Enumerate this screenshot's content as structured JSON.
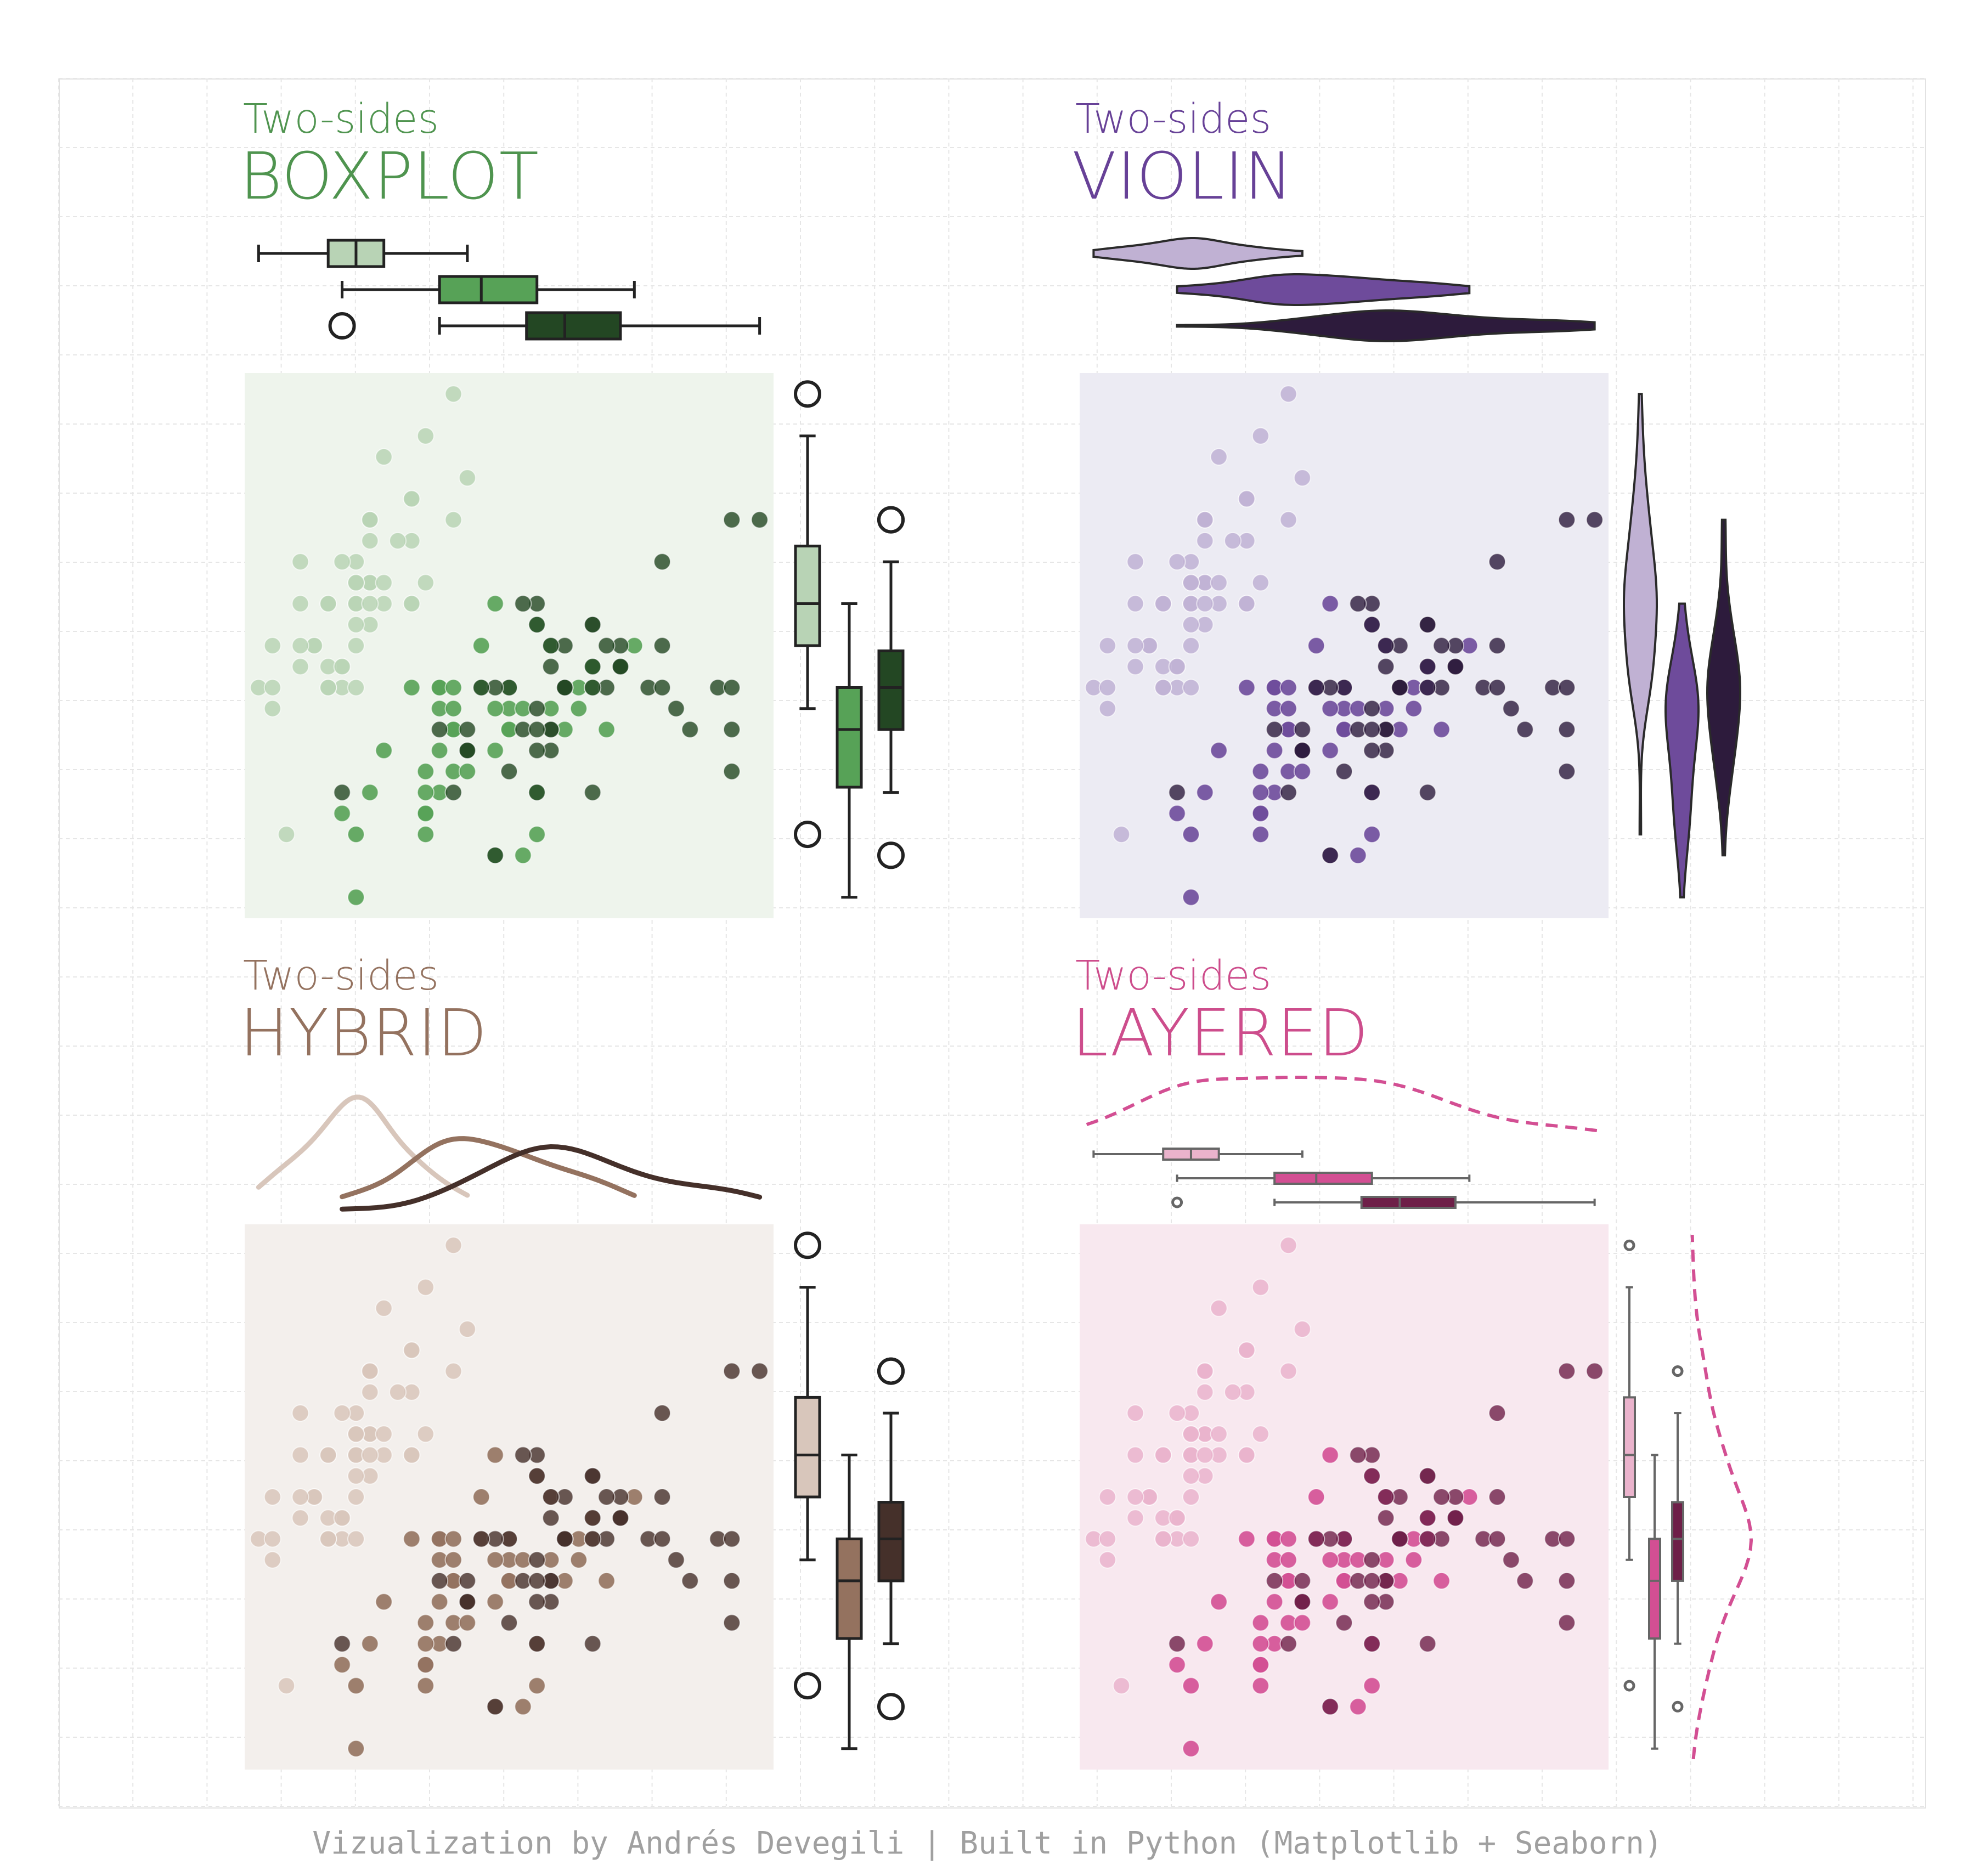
{
  "panels": [
    {
      "subtitle": "Two-sides",
      "title": "BOXPLOT",
      "title_color": "#4f944f",
      "style": "boxplot",
      "bg": "#eef4ec",
      "colors": [
        "#b8d3b5",
        "#57a257",
        "#234723"
      ],
      "pt_alpha": [
        0.85,
        0.9,
        0.8
      ]
    },
    {
      "subtitle": "Two-sides",
      "title": "VIOLIN",
      "title_color": "#674197",
      "style": "violin",
      "bg": "#ecebf3",
      "colors": [
        "#c0b1d3",
        "#6e4b9b",
        "#2d1b3c"
      ],
      "pt_alpha": [
        0.85,
        0.9,
        0.8
      ]
    },
    {
      "subtitle": "Two-sides",
      "title": "HYBRID",
      "title_color": "#94725f",
      "style": "hybrid",
      "bg": "#f3efec",
      "colors": [
        "#d8c6bb",
        "#94725f",
        "#45302a"
      ],
      "pt_alpha": [
        0.85,
        0.9,
        0.8
      ]
    },
    {
      "subtitle": "Two-sides",
      "title": "LAYERED",
      "title_color": "#cd4d8c",
      "style": "layered",
      "bg": "#f8e8ef",
      "colors": [
        "#eab3cc",
        "#d34f93",
        "#6e1f48"
      ],
      "pt_alpha": [
        0.85,
        0.9,
        0.8
      ]
    }
  ],
  "credit": "Vizualization by Andrés Devegili | Built in Python (Matplotlib + Seaborn)",
  "chart_data": {
    "type": "scatter",
    "xlabel": "",
    "ylabel": "",
    "xlim": [
      4.2,
      8.0
    ],
    "ylim": [
      1.9,
      4.5
    ],
    "grid": true,
    "marginals": [
      "boxplot",
      "violin",
      "kde",
      "kde + boxplot"
    ],
    "series": [
      {
        "x": [
          5.1,
          4.9,
          4.7,
          4.6,
          5.0,
          5.4,
          4.6,
          5.0,
          4.4,
          4.9,
          5.4,
          4.8,
          4.8,
          4.3,
          5.8,
          5.7,
          5.4,
          5.1,
          5.7,
          5.1,
          5.4,
          5.1,
          4.6,
          5.1,
          4.8,
          5.0,
          5.0,
          5.2,
          5.2,
          4.7,
          4.8,
          5.4,
          5.2,
          5.5,
          4.9,
          5.0,
          5.5,
          4.9,
          4.4,
          5.1,
          5.0,
          4.5,
          4.4,
          5.0,
          5.1,
          4.8,
          5.1,
          4.6,
          5.3,
          5.0
        ],
        "y": [
          3.5,
          3.0,
          3.2,
          3.1,
          3.6,
          3.9,
          3.4,
          3.4,
          2.9,
          3.1,
          3.7,
          3.4,
          3.0,
          3.0,
          4.0,
          4.4,
          3.9,
          3.5,
          3.8,
          3.8,
          3.4,
          3.7,
          3.6,
          3.3,
          3.4,
          3.0,
          3.4,
          3.5,
          3.4,
          3.2,
          3.1,
          3.4,
          4.1,
          4.2,
          3.1,
          3.2,
          3.5,
          3.6,
          3.0,
          3.4,
          3.5,
          2.3,
          3.2,
          3.5,
          3.8,
          3.0,
          3.8,
          3.2,
          3.7,
          3.3
        ]
      },
      {
        "x": [
          7.0,
          6.4,
          6.9,
          5.5,
          6.5,
          5.7,
          6.3,
          4.9,
          6.6,
          5.2,
          5.0,
          5.9,
          6.0,
          6.1,
          5.6,
          6.7,
          5.6,
          5.8,
          6.2,
          5.6,
          5.9,
          6.1,
          6.3,
          6.1,
          6.4,
          6.6,
          6.8,
          6.7,
          6.0,
          5.7,
          5.5,
          5.5,
          5.8,
          6.0,
          5.4,
          6.0,
          6.7,
          6.3,
          5.6,
          5.5,
          5.5,
          6.1,
          5.8,
          5.0,
          5.6,
          5.7,
          5.7,
          6.2,
          5.1,
          5.7
        ],
        "y": [
          3.2,
          3.2,
          3.1,
          2.3,
          2.8,
          2.8,
          3.3,
          2.4,
          2.9,
          2.7,
          2.0,
          3.0,
          2.2,
          2.9,
          2.9,
          3.1,
          3.0,
          2.7,
          2.2,
          2.5,
          3.2,
          2.8,
          2.5,
          2.8,
          2.9,
          3.0,
          2.8,
          3.0,
          2.9,
          2.6,
          2.4,
          2.4,
          2.7,
          2.7,
          3.0,
          3.4,
          3.1,
          2.3,
          3.0,
          2.5,
          2.6,
          3.0,
          2.6,
          2.3,
          2.7,
          3.0,
          2.9,
          2.9,
          2.5,
          2.8
        ]
      },
      {
        "x": [
          6.3,
          5.8,
          7.1,
          6.3,
          6.5,
          7.6,
          4.9,
          7.3,
          6.7,
          7.2,
          6.5,
          6.4,
          6.8,
          5.7,
          5.8,
          6.4,
          6.5,
          7.7,
          7.7,
          6.0,
          6.9,
          5.6,
          7.7,
          6.3,
          6.7,
          7.2,
          6.2,
          6.1,
          6.4,
          7.2,
          7.4,
          7.9,
          6.4,
          6.3,
          6.1,
          7.7,
          6.3,
          6.4,
          6.0,
          6.9,
          6.7,
          6.9,
          5.8,
          6.8,
          6.7,
          6.7,
          6.3,
          6.5,
          6.2,
          5.9
        ],
        "y": [
          3.3,
          2.7,
          3.0,
          2.9,
          3.0,
          3.0,
          2.5,
          2.9,
          2.5,
          3.6,
          3.2,
          2.7,
          3.0,
          2.5,
          2.8,
          3.2,
          3.0,
          3.8,
          2.6,
          2.2,
          3.2,
          2.8,
          2.8,
          2.7,
          3.3,
          3.2,
          2.8,
          3.0,
          2.8,
          3.0,
          2.8,
          3.8,
          2.8,
          2.8,
          2.6,
          3.0,
          3.4,
          3.1,
          3.0,
          3.1,
          3.1,
          3.1,
          2.7,
          3.2,
          3.3,
          3.0,
          2.5,
          3.0,
          3.4,
          3.0
        ]
      }
    ]
  }
}
